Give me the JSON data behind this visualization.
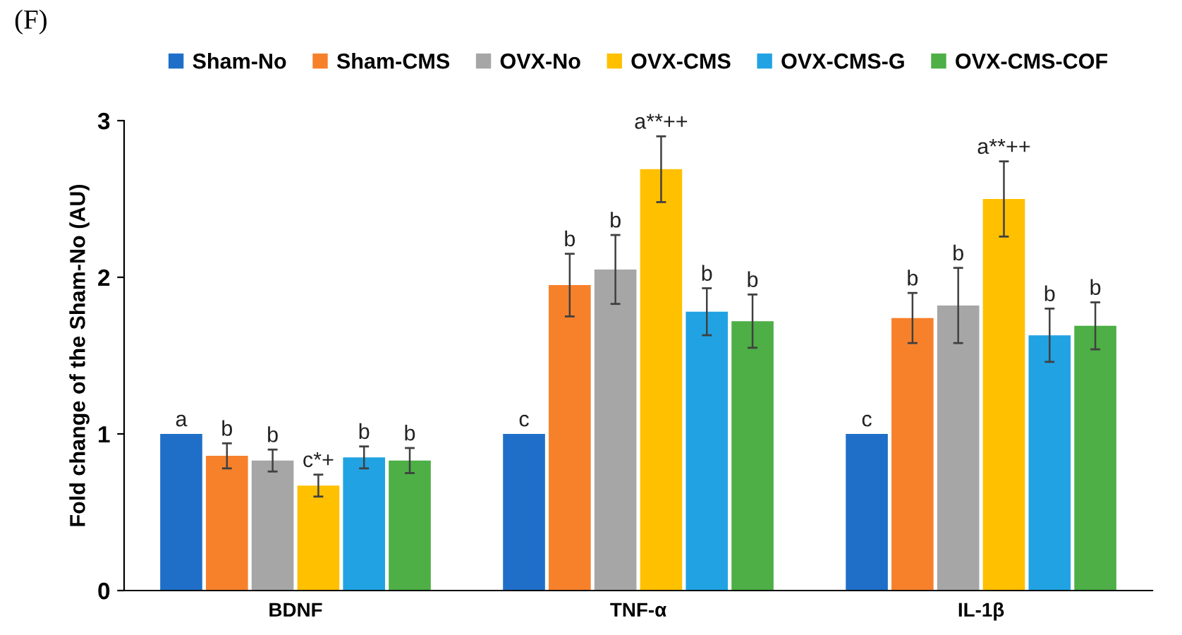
{
  "chart_data": {
    "type": "bar",
    "ylabel": "Fold change of the Sham-No (AU)",
    "annotations": [
      "(F)"
    ],
    "categories": [
      "BDNF",
      "TNF-α",
      "IL-1β"
    ],
    "ylim": [
      0,
      3
    ],
    "yticks": [
      0,
      1,
      2,
      3
    ],
    "grid": false,
    "legend": "top",
    "series": [
      {
        "name": "Sham-No",
        "color": "#1f6fc8",
        "values": [
          1.0,
          1.0,
          1.0
        ],
        "errors": [
          null,
          null,
          null
        ],
        "value_labels": [
          "a",
          "c",
          "c"
        ]
      },
      {
        "name": "Sham-CMS",
        "color": "#f7812b",
        "values": [
          0.86,
          1.95,
          1.74
        ],
        "errors": [
          0.08,
          0.2,
          0.16
        ],
        "value_labels": [
          "b",
          "b",
          "b"
        ]
      },
      {
        "name": "OVX-No",
        "color": "#a6a6a6",
        "values": [
          0.83,
          2.05,
          1.82
        ],
        "errors": [
          0.07,
          0.22,
          0.24
        ],
        "value_labels": [
          "b",
          "b",
          "b"
        ]
      },
      {
        "name": "OVX-CMS",
        "color": "#ffc000",
        "values": [
          0.67,
          2.69,
          2.5
        ],
        "errors": [
          0.07,
          0.21,
          0.24
        ],
        "value_labels": [
          "c*+",
          "a**++",
          "a**++"
        ]
      },
      {
        "name": "OVX-CMS-G",
        "color": "#21a3e3",
        "values": [
          0.85,
          1.78,
          1.63
        ],
        "errors": [
          0.07,
          0.15,
          0.17
        ],
        "value_labels": [
          "b",
          "b",
          "b"
        ]
      },
      {
        "name": "OVX-CMS-COF",
        "color": "#4daf45",
        "values": [
          0.83,
          1.72,
          1.69
        ],
        "errors": [
          0.08,
          0.17,
          0.15
        ],
        "value_labels": [
          "b",
          "b",
          "b"
        ]
      }
    ]
  }
}
